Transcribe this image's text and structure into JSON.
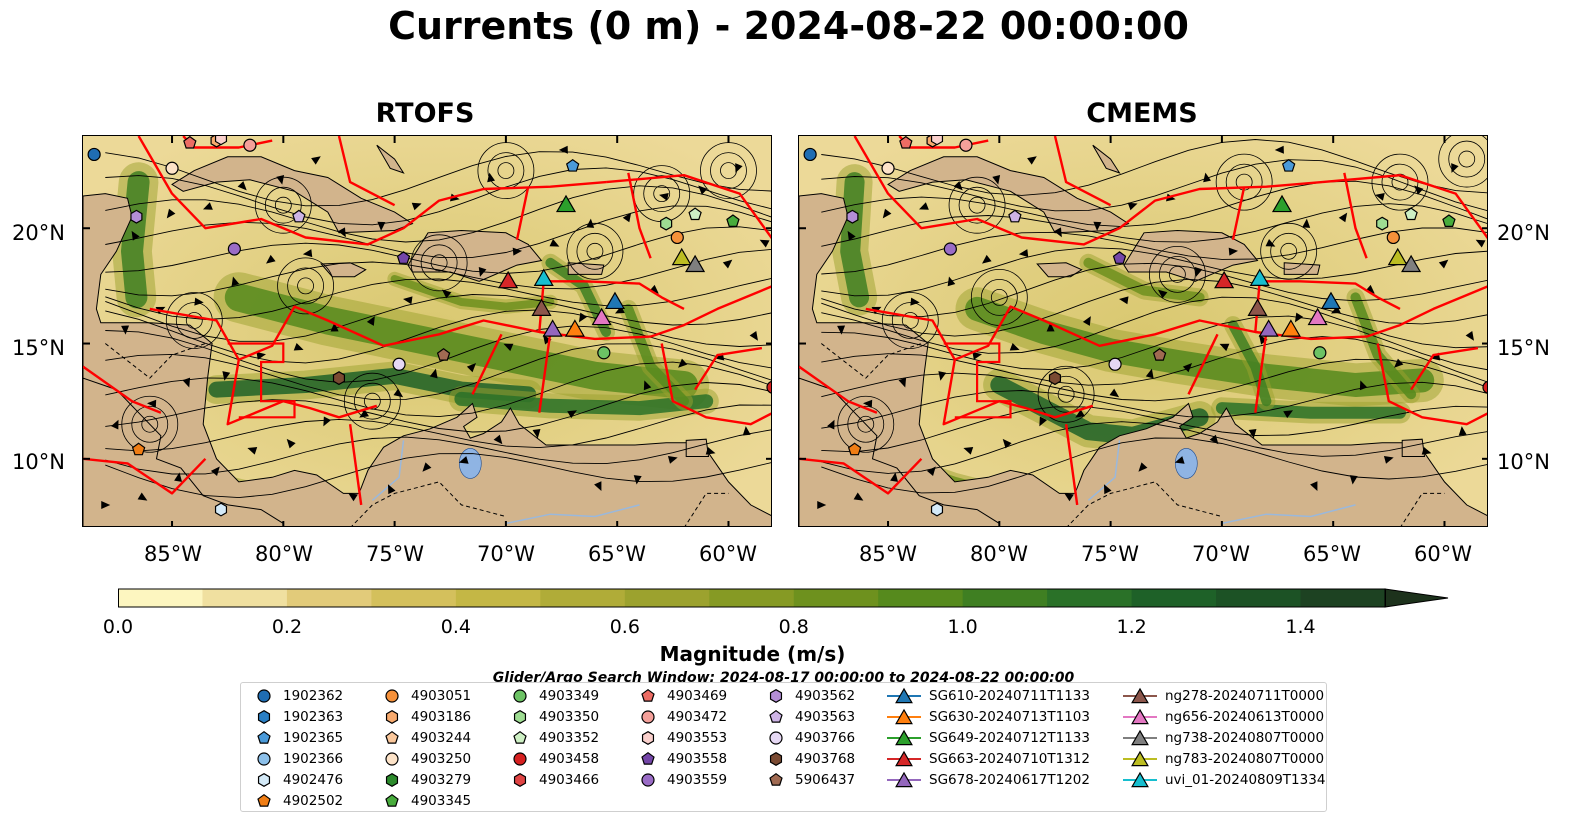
{
  "title": "Currents (0 m) - 2024-08-22 00:00:00",
  "panels": [
    {
      "title": "RTOFS"
    },
    {
      "title": "CMEMS"
    }
  ],
  "chart_data": {
    "type": "heatmap",
    "title": "Currents (0 m) - 2024-08-22 00:00:00",
    "lon_range": [
      -89,
      -58
    ],
    "lat_range": [
      7,
      24
    ],
    "x_ticks": [
      "85°W",
      "80°W",
      "75°W",
      "70°W",
      "65°W",
      "60°W"
    ],
    "y_ticks": [
      "20°N",
      "15°N",
      "10°N"
    ],
    "colorbar": {
      "label": "Magnitude (m/s)",
      "min": 0.0,
      "max": 1.5,
      "extend": "max",
      "ticks": [
        "0.0",
        "0.2",
        "0.4",
        "0.6",
        "0.8",
        "1.0",
        "1.2",
        "1.4"
      ],
      "tick_values": [
        0.0,
        0.2,
        0.4,
        0.6,
        0.8,
        1.0,
        1.2,
        1.4
      ],
      "colors": [
        "#fdf6c0",
        "#f0e0a0",
        "#e2cb7a",
        "#d4c05c",
        "#c4b745",
        "#b0ac38",
        "#9ca22e",
        "#869a24",
        "#6e911e",
        "#568a1d",
        "#3f7f22",
        "#2a7128",
        "#1e6128",
        "#1c5225",
        "#1d4222",
        "#1d321c"
      ]
    },
    "search_window": "Glider/Argo Search Window: 2024-08-17 00:00:00 to 2024-08-22 00:00:00",
    "legend": [
      {
        "label": "1902362",
        "marker": "circle",
        "color": "#1f6db3"
      },
      {
        "label": "1902363",
        "marker": "hexagon",
        "color": "#2a7fc4"
      },
      {
        "label": "1902365",
        "marker": "pentagon",
        "color": "#4a9ad9"
      },
      {
        "label": "1902366",
        "marker": "circle",
        "color": "#8cc0ea"
      },
      {
        "label": "4902476",
        "marker": "hexagon",
        "color": "#d4eaf8"
      },
      {
        "label": "4902502",
        "marker": "pentagon",
        "color": "#f07d14"
      },
      {
        "label": "4903051",
        "marker": "circle",
        "color": "#f6913a"
      },
      {
        "label": "4903186",
        "marker": "hexagon",
        "color": "#f8aa6e"
      },
      {
        "label": "4903244",
        "marker": "pentagon",
        "color": "#fbc89c"
      },
      {
        "label": "4903250",
        "marker": "circle",
        "color": "#fde3c8"
      },
      {
        "label": "4903279",
        "marker": "hexagon",
        "color": "#2c8b2c"
      },
      {
        "label": "4903345",
        "marker": "pentagon",
        "color": "#48ac3c"
      },
      {
        "label": "4903349",
        "marker": "circle",
        "color": "#6cc264"
      },
      {
        "label": "4903350",
        "marker": "hexagon",
        "color": "#9edc92"
      },
      {
        "label": "4903352",
        "marker": "pentagon",
        "color": "#cef0c4"
      },
      {
        "label": "4903458",
        "marker": "circle",
        "color": "#d62020"
      },
      {
        "label": "4903466",
        "marker": "hexagon",
        "color": "#e04444"
      },
      {
        "label": "4903469",
        "marker": "pentagon",
        "color": "#ec6c64"
      },
      {
        "label": "4903472",
        "marker": "circle",
        "color": "#f4a09a"
      },
      {
        "label": "4903553",
        "marker": "hexagon",
        "color": "#fad0cc"
      },
      {
        "label": "4903558",
        "marker": "pentagon",
        "color": "#7446a8"
      },
      {
        "label": "4903559",
        "marker": "circle",
        "color": "#9a6cc6"
      },
      {
        "label": "4903562",
        "marker": "hexagon",
        "color": "#b48ed6"
      },
      {
        "label": "4903563",
        "marker": "pentagon",
        "color": "#ceb4e6"
      },
      {
        "label": "4903766",
        "marker": "circle",
        "color": "#e6d8f4"
      },
      {
        "label": "4903768",
        "marker": "hexagon",
        "color": "#7a4a32"
      },
      {
        "label": "5906437",
        "marker": "pentagon",
        "color": "#a06a52"
      },
      {
        "label": "SG610-20240711T1133",
        "marker": "triangle-line",
        "color": "#1f77b4"
      },
      {
        "label": "SG630-20240713T1103",
        "marker": "triangle-line",
        "color": "#ff7f0e"
      },
      {
        "label": "SG649-20240712T1133",
        "marker": "triangle-line",
        "color": "#2ca02c"
      },
      {
        "label": "SG663-20240710T1312",
        "marker": "triangle-line",
        "color": "#d62728"
      },
      {
        "label": "SG678-20240617T1202",
        "marker": "triangle-line",
        "color": "#9467bd"
      },
      {
        "label": "ng278-20240711T0000",
        "marker": "triangle-line",
        "color": "#8c564b"
      },
      {
        "label": "ng656-20240613T0000",
        "marker": "triangle-line",
        "color": "#e377c2"
      },
      {
        "label": "ng738-20240807T0000",
        "marker": "triangle-line",
        "color": "#7f7f7f"
      },
      {
        "label": "ng783-20240807T0000",
        "marker": "triangle-line",
        "color": "#bcbd22"
      },
      {
        "label": "uvi_01-20240809T1334",
        "marker": "triangle-line",
        "color": "#17becf"
      }
    ],
    "argo_positions": [
      {
        "id": "1902362",
        "lon": -88.5,
        "lat": 23.2
      },
      {
        "id": "4903186",
        "lon": -83.0,
        "lat": 23.8
      },
      {
        "id": "4903469",
        "lon": -84.2,
        "lat": 23.7
      },
      {
        "id": "4903553",
        "lon": -82.8,
        "lat": 23.9
      },
      {
        "id": "4903472",
        "lon": -81.5,
        "lat": 23.6
      },
      {
        "id": "4903250",
        "lon": -85.0,
        "lat": 22.6
      },
      {
        "id": "4903562",
        "lon": -86.6,
        "lat": 20.5
      },
      {
        "id": "4903563",
        "lon": -79.3,
        "lat": 20.5
      },
      {
        "id": "4903559",
        "lon": -82.2,
        "lat": 19.1
      },
      {
        "id": "4903558",
        "lon": -74.6,
        "lat": 18.7
      },
      {
        "id": "1902365",
        "lon": -67.0,
        "lat": 22.7
      },
      {
        "id": "4903349",
        "lon": -65.6,
        "lat": 14.6
      },
      {
        "id": "4903350",
        "lon": -62.8,
        "lat": 20.2
      },
      {
        "id": "4903352",
        "lon": -61.5,
        "lat": 20.6
      },
      {
        "id": "4903345",
        "lon": -59.8,
        "lat": 20.3
      },
      {
        "id": "4903051",
        "lon": -62.3,
        "lat": 19.6
      },
      {
        "id": "4903766",
        "lon": -74.8,
        "lat": 14.1
      },
      {
        "id": "5906437",
        "lon": -72.8,
        "lat": 14.5
      },
      {
        "id": "4903768",
        "lon": -77.5,
        "lat": 13.5
      },
      {
        "id": "4902502",
        "lon": -86.5,
        "lat": 10.4
      },
      {
        "id": "4902476",
        "lon": -82.8,
        "lat": 7.8
      },
      {
        "id": "4903458",
        "lon": -58.0,
        "lat": 13.1
      }
    ],
    "glider_positions": [
      {
        "id": "SG663-20240710T1312",
        "lon": -69.9,
        "lat": 17.7
      },
      {
        "id": "uvi_01-20240809T1334",
        "lon": -68.3,
        "lat": 17.8
      },
      {
        "id": "SG649-20240712T1133",
        "lon": -67.3,
        "lat": 21.0
      },
      {
        "id": "SG610-20240711T1133",
        "lon": -65.1,
        "lat": 16.8
      },
      {
        "id": "ng656-20240613T0000",
        "lon": -65.7,
        "lat": 16.1
      },
      {
        "id": "ng278-20240711T0000",
        "lon": -68.4,
        "lat": 16.5
      },
      {
        "id": "SG678-20240617T1202",
        "lon": -67.9,
        "lat": 15.6
      },
      {
        "id": "SG630-20240713T1103",
        "lon": -66.9,
        "lat": 15.6
      },
      {
        "id": "ng783-20240807T0000",
        "lon": -62.1,
        "lat": 18.7
      },
      {
        "id": "ng738-20240807T0000",
        "lon": -61.5,
        "lat": 18.4
      }
    ]
  }
}
